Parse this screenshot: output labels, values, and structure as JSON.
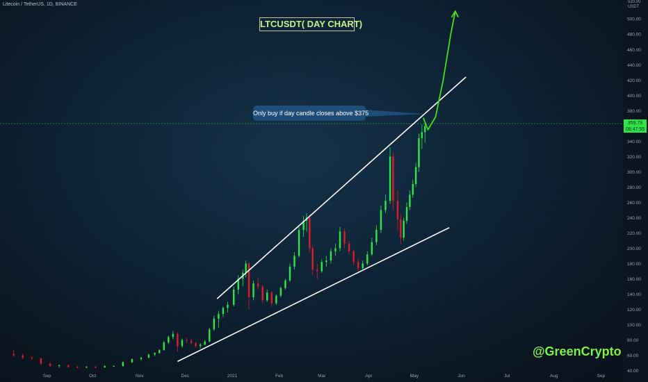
{
  "header": {
    "symbol_text": "Litecoin / TetherUS, 1D, BINANCE",
    "chart_title": "LTCUSDT( DAY CHART)",
    "callout_text": "Only buy if day candle closes above $375",
    "watermark": "@GreenCrypto",
    "axis_unit": "USDT",
    "axis_top_label": "520.00"
  },
  "price_tag": {
    "price": "359.79",
    "countdown": "08:47:55"
  },
  "colors": {
    "background": "#0d2234",
    "bull": "#2ee64a",
    "bear": "#e01b2a",
    "trendline": "#ffffff",
    "projection": "#41e01a",
    "callout": "#1e4d78",
    "title_text": "#c8f08a"
  },
  "chart_data": {
    "type": "candlestick",
    "title": "LTCUSDT( DAY CHART)",
    "xlabel": "",
    "ylabel": "",
    "x_ticks": [
      "Sep",
      "Oct",
      "Nov",
      "Dec",
      "2021",
      "Feb",
      "Mar",
      "Apr",
      "May",
      "Jun",
      "Jul",
      "Aug",
      "Sep"
    ],
    "y_ticks": [
      40,
      60,
      80,
      100,
      120,
      140,
      160,
      180,
      200,
      220,
      240,
      260,
      280,
      300,
      320,
      340,
      360,
      380,
      400,
      420,
      440,
      460,
      480,
      500
    ],
    "ylim": [
      36,
      522
    ],
    "grid": false,
    "current_price": 359.79,
    "upper_trendline": {
      "start": [
        "2020-12-22",
        134
      ],
      "end": [
        "2021-06-04",
        424
      ]
    },
    "lower_trendline": {
      "start": [
        "2020-11-26",
        52
      ],
      "end": [
        "2021-05-24",
        227
      ]
    },
    "projection_path": [
      [
        "2021-05-07",
        370
      ],
      [
        "2021-05-10",
        355
      ],
      [
        "2021-05-15",
        372
      ],
      [
        "2021-05-20",
        420
      ],
      [
        "2021-05-25",
        480
      ],
      [
        "2021-05-28",
        510
      ]
    ],
    "key_price": 375,
    "candles": [
      [
        "2020-08-10",
        62,
        67,
        58,
        60
      ],
      [
        "2020-08-16",
        60,
        62,
        55,
        57
      ],
      [
        "2020-08-22",
        57,
        59,
        54,
        56
      ],
      [
        "2020-08-28",
        56,
        57,
        47,
        49
      ],
      [
        "2020-09-03",
        49,
        51,
        45,
        46
      ],
      [
        "2020-09-09",
        46,
        48,
        44,
        47
      ],
      [
        "2020-09-15",
        47,
        48,
        44,
        45
      ],
      [
        "2020-09-21",
        45,
        46,
        43,
        44
      ],
      [
        "2020-09-27",
        44,
        46,
        43,
        45
      ],
      [
        "2020-10-03",
        45,
        46,
        43,
        44
      ],
      [
        "2020-10-09",
        44,
        47,
        44,
        46
      ],
      [
        "2020-10-15",
        46,
        47,
        45,
        46
      ],
      [
        "2020-10-21",
        46,
        52,
        45,
        51
      ],
      [
        "2020-10-27",
        51,
        56,
        50,
        55
      ],
      [
        "2020-11-02",
        55,
        58,
        53,
        57
      ],
      [
        "2020-11-07",
        57,
        62,
        56,
        61
      ],
      [
        "2020-11-11",
        61,
        64,
        59,
        63
      ],
      [
        "2020-11-14",
        63,
        68,
        62,
        67
      ],
      [
        "2020-11-17",
        67,
        79,
        66,
        77
      ],
      [
        "2020-11-20",
        77,
        86,
        75,
        84
      ],
      [
        "2020-11-23",
        84,
        92,
        81,
        88
      ],
      [
        "2020-11-26",
        88,
        90,
        65,
        72
      ],
      [
        "2020-11-29",
        72,
        82,
        70,
        80
      ],
      [
        "2020-12-02",
        80,
        83,
        76,
        79
      ],
      [
        "2020-12-05",
        79,
        82,
        74,
        76
      ],
      [
        "2020-12-08",
        76,
        78,
        70,
        72
      ],
      [
        "2020-12-11",
        72,
        76,
        69,
        74
      ],
      [
        "2020-12-14",
        74,
        80,
        73,
        78
      ],
      [
        "2020-12-17",
        78,
        96,
        77,
        94
      ],
      [
        "2020-12-20",
        94,
        112,
        92,
        108
      ],
      [
        "2020-12-23",
        108,
        118,
        96,
        114
      ],
      [
        "2020-12-26",
        114,
        124,
        110,
        122
      ],
      [
        "2020-12-29",
        122,
        130,
        116,
        126
      ],
      [
        "2021-01-02",
        126,
        150,
        124,
        146
      ],
      [
        "2021-01-05",
        146,
        165,
        140,
        160
      ],
      [
        "2021-01-08",
        160,
        172,
        150,
        168
      ],
      [
        "2021-01-10",
        168,
        184,
        162,
        180
      ],
      [
        "2021-01-12",
        180,
        182,
        120,
        136
      ],
      [
        "2021-01-15",
        136,
        158,
        132,
        154
      ],
      [
        "2021-01-18",
        154,
        162,
        146,
        150
      ],
      [
        "2021-01-21",
        150,
        152,
        128,
        132
      ],
      [
        "2021-01-24",
        132,
        146,
        130,
        142
      ],
      [
        "2021-01-27",
        142,
        144,
        124,
        128
      ],
      [
        "2021-01-30",
        128,
        140,
        126,
        138
      ],
      [
        "2021-02-02",
        138,
        150,
        136,
        148
      ],
      [
        "2021-02-05",
        148,
        160,
        146,
        158
      ],
      [
        "2021-02-08",
        158,
        180,
        156,
        176
      ],
      [
        "2021-02-11",
        176,
        195,
        172,
        190
      ],
      [
        "2021-02-14",
        190,
        228,
        188,
        224
      ],
      [
        "2021-02-17",
        224,
        242,
        215,
        236
      ],
      [
        "2021-02-19",
        236,
        246,
        222,
        240
      ],
      [
        "2021-02-21",
        240,
        244,
        195,
        200
      ],
      [
        "2021-02-23",
        200,
        204,
        165,
        172
      ],
      [
        "2021-02-26",
        172,
        180,
        160,
        170
      ],
      [
        "2021-03-01",
        170,
        186,
        168,
        182
      ],
      [
        "2021-03-04",
        182,
        190,
        176,
        184
      ],
      [
        "2021-03-07",
        184,
        200,
        180,
        196
      ],
      [
        "2021-03-10",
        196,
        206,
        190,
        200
      ],
      [
        "2021-03-13",
        200,
        228,
        196,
        222
      ],
      [
        "2021-03-16",
        222,
        226,
        200,
        206
      ],
      [
        "2021-03-19",
        206,
        210,
        192,
        196
      ],
      [
        "2021-03-22",
        196,
        198,
        178,
        182
      ],
      [
        "2021-03-25",
        182,
        186,
        170,
        174
      ],
      [
        "2021-03-28",
        174,
        184,
        172,
        180
      ],
      [
        "2021-03-31",
        180,
        196,
        178,
        192
      ],
      [
        "2021-04-03",
        192,
        214,
        190,
        208
      ],
      [
        "2021-04-06",
        208,
        230,
        204,
        224
      ],
      [
        "2021-04-09",
        224,
        256,
        220,
        250
      ],
      [
        "2021-04-12",
        250,
        270,
        246,
        262
      ],
      [
        "2021-04-15",
        262,
        332,
        258,
        320
      ],
      [
        "2021-04-17",
        320,
        326,
        250,
        262
      ],
      [
        "2021-04-20",
        262,
        276,
        224,
        238
      ],
      [
        "2021-04-22",
        238,
        244,
        205,
        214
      ],
      [
        "2021-04-24",
        214,
        240,
        210,
        236
      ],
      [
        "2021-04-26",
        236,
        260,
        232,
        254
      ],
      [
        "2021-04-28",
        254,
        276,
        250,
        270
      ],
      [
        "2021-04-30",
        270,
        290,
        266,
        284
      ],
      [
        "2021-05-02",
        284,
        312,
        280,
        306
      ],
      [
        "2021-05-04",
        306,
        350,
        300,
        344
      ],
      [
        "2021-05-06",
        344,
        362,
        330,
        352
      ],
      [
        "2021-05-08",
        352,
        364,
        338,
        359.79
      ]
    ]
  }
}
